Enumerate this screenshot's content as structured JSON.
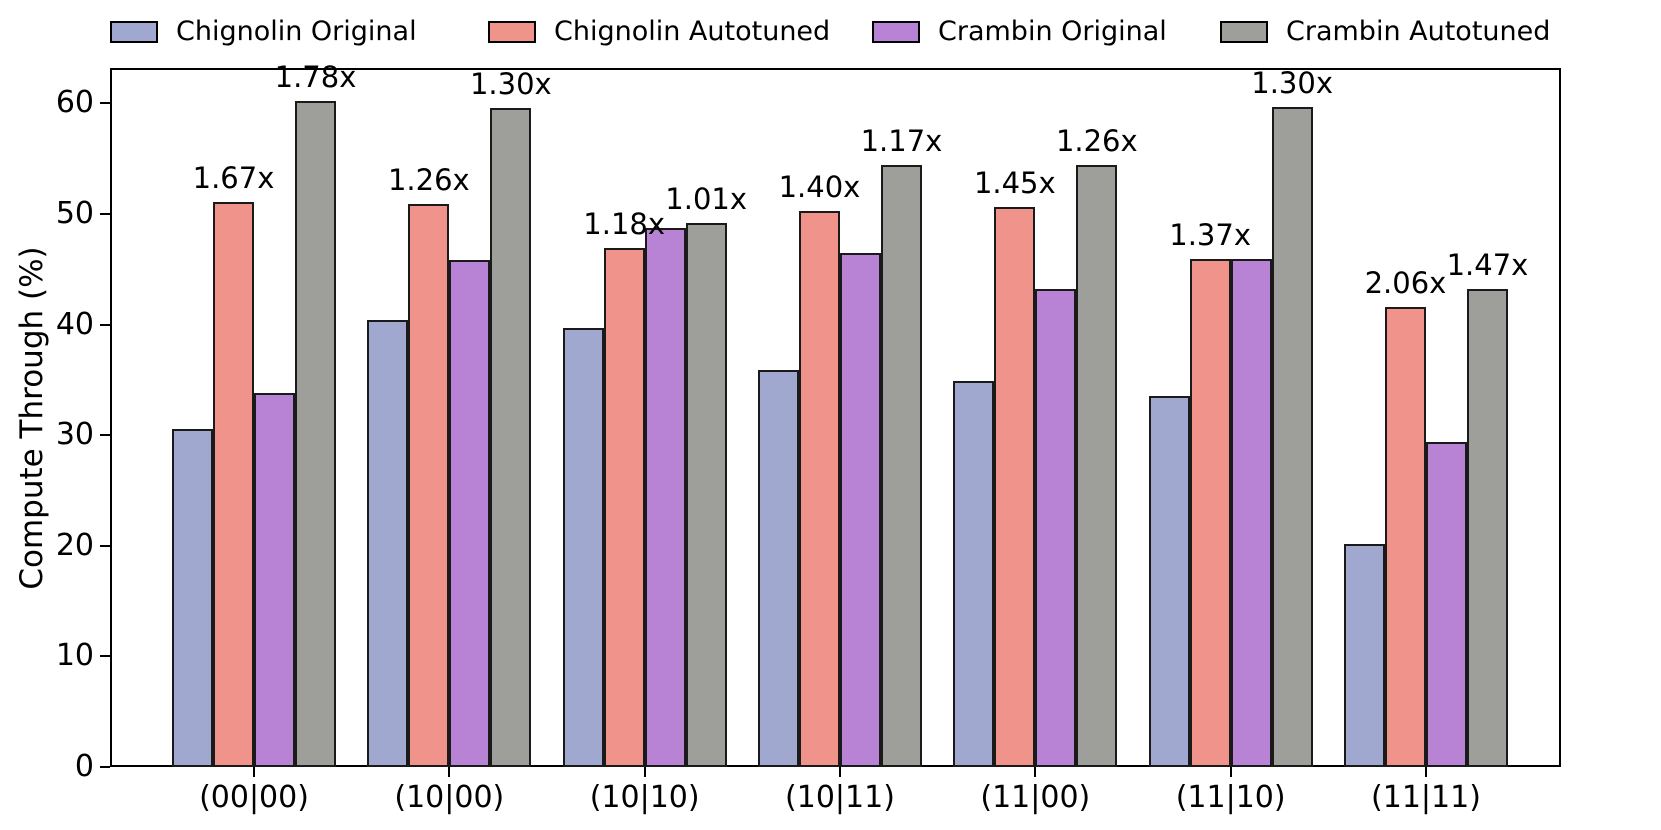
{
  "chart_data": {
    "type": "bar",
    "title": "",
    "xlabel": "",
    "ylabel": "Compute Through (%)",
    "ylim": [
      0,
      63.2
    ],
    "yticks": [
      0,
      10,
      20,
      30,
      40,
      50,
      60
    ],
    "grid": false,
    "legend_position": "top",
    "bar_edge_color": "#1a1a1a",
    "categories": [
      "(00|00)",
      "(10|00)",
      "(10|10)",
      "(10|11)",
      "(11|00)",
      "(11|10)",
      "(11|11)"
    ],
    "series": [
      {
        "name": "Chignolin Original",
        "color": "#A0A8D0",
        "values": [
          30.6,
          40.4,
          39.7,
          35.9,
          34.9,
          33.5,
          20.2
        ]
      },
      {
        "name": "Chignolin Autotuned",
        "color": "#F0938A",
        "values": [
          51.1,
          50.9,
          46.9,
          50.3,
          50.6,
          45.9,
          41.6
        ],
        "annotations": [
          "1.67x",
          "1.26x",
          "1.18x",
          "1.40x",
          "1.45x",
          "1.37x",
          "2.06x"
        ]
      },
      {
        "name": "Crambin Original",
        "color": "#B983D5",
        "values": [
          33.8,
          45.8,
          48.7,
          46.5,
          43.2,
          45.9,
          29.4
        ]
      },
      {
        "name": "Crambin Autotuned",
        "color": "#9E9E9B",
        "values": [
          60.2,
          59.6,
          49.2,
          54.4,
          54.4,
          59.7,
          43.2
        ],
        "annotations": [
          "1.78x",
          "1.30x",
          "1.01x",
          "1.17x",
          "1.26x",
          "1.30x",
          "1.47x"
        ]
      }
    ]
  }
}
